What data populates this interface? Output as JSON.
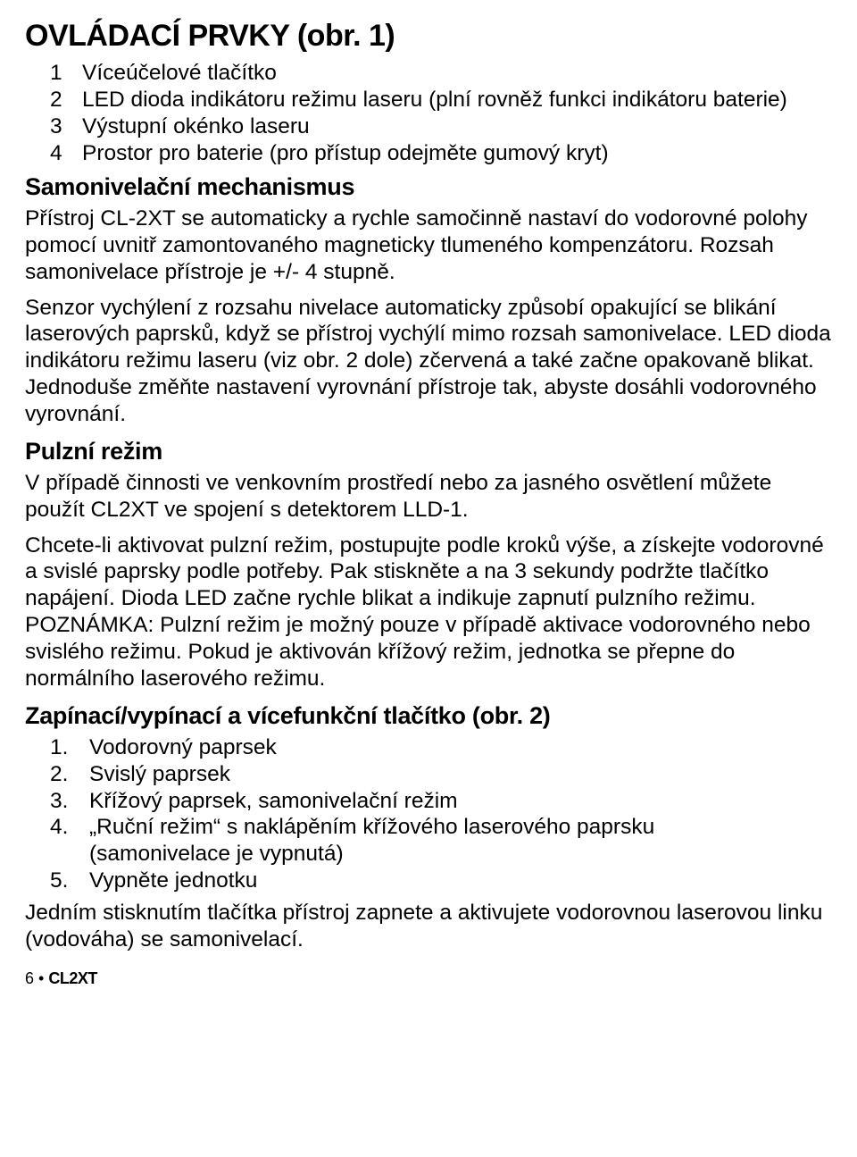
{
  "title_main": "OVLÁDACÍ PRVKY (obr. 1)",
  "controls_list": [
    {
      "n": "1",
      "t": "Víceúčelové tlačítko"
    },
    {
      "n": "2",
      "t": "LED dioda indikátoru režimu laseru (plní rovněž funkci indikátoru baterie)"
    },
    {
      "n": "3",
      "t": "Výstupní okénko laseru"
    },
    {
      "n": "4",
      "t": "Prostor pro baterie (pro přístup odejměte gumový kryt)"
    }
  ],
  "h_selflevel": "Samonivelační mechanismus",
  "p_selflevel1": "Přístroj CL-2XT se automaticky a rychle samočinně nastaví do vodorovné polohy pomocí uvnitř zamontovaného magneticky tlumeného kompenzátoru. Rozsah samonivelace přístroje je +/- 4 stupně.",
  "p_selflevel2": "Senzor vychýlení z rozsahu nivelace automaticky způsobí opakující se blikání laserových paprsků, když se přístroj vychýlí mimo rozsah samonivelace. LED dioda indikátoru režimu laseru (viz obr. 2 dole) zčervená a také začne opakovaně blikat. Jednoduše změňte nastavení vyrovnání přístroje tak, abyste dosáhli vodorovného vyrovnání.",
  "h_pulse": "Pulzní režim",
  "p_pulse1": "V případě činnosti ve venkovním prostředí nebo za jasného osvětlení můžete použít CL2XT ve spojení s detektorem LLD-1.",
  "p_pulse2": "Chcete-li aktivovat pulzní režim, postupujte podle kroků výše, a získejte vodorovné a svislé paprsky podle potřeby. Pak stiskněte a na 3 sekundy podržte tlačítko napájení. Dioda LED začne rychle blikat a indikuje zapnutí pulzního režimu. POZNÁMKA: Pulzní režim je možný pouze v případě aktivace vodorovného nebo svislého režimu. Pokud je aktivován křížový režim, jednotka se přepne do normálního laserového režimu.",
  "h_button": "Zapínací/vypínací a vícefunkční tlačítko (obr. 2)",
  "button_list": [
    {
      "n": "1.",
      "t": "Vodorovný paprsek"
    },
    {
      "n": "2.",
      "t": "Svislý paprsek"
    },
    {
      "n": "3.",
      "t": "Křížový paprsek, samonivelační režim"
    },
    {
      "n": "4.",
      "t": "„Ruční režim“ s naklápěním křížového laserového paprsku"
    },
    {
      "n": "",
      "t": "(samonivelace je vypnutá)"
    },
    {
      "n": "5.",
      "t": "Vypněte jednotku"
    }
  ],
  "p_press": "Jedním stisknutím tlačítka přístroj zapnete a aktivujete vodorovnou laserovou linku (vodováha) se samonivelací.",
  "footer_page": "6 • ",
  "footer_model": "CL2XT"
}
